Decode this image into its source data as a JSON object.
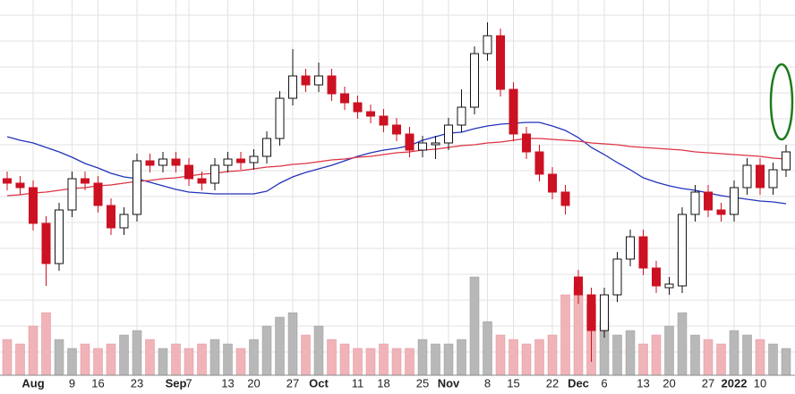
{
  "chart_data": {
    "type": "candlestick",
    "categories": [
      null,
      null,
      "Aug",
      null,
      null,
      "9",
      null,
      "16",
      null,
      null,
      "23",
      null,
      null,
      "Sep",
      "7",
      null,
      null,
      "13",
      null,
      "20",
      null,
      null,
      "27",
      null,
      "Oct",
      null,
      null,
      "11",
      null,
      "18",
      null,
      null,
      "25",
      null,
      "Nov",
      null,
      null,
      "8",
      null,
      "15",
      null,
      null,
      "22",
      null,
      "Dec",
      null,
      "6",
      null,
      null,
      "13",
      null,
      "20",
      null,
      null,
      "27",
      null,
      "2022",
      null,
      "10",
      null,
      null
    ],
    "open": [
      240,
      235,
      230,
      190,
      145,
      205,
      240,
      235,
      210,
      185,
      200,
      260,
      255,
      262,
      255,
      240,
      235,
      255,
      262,
      258,
      265,
      285,
      330,
      355,
      345,
      355,
      335,
      325,
      315,
      310,
      300,
      290,
      272,
      278,
      280,
      300,
      320,
      380,
      400,
      340,
      290,
      270,
      245,
      225,
      130,
      110,
      70,
      110,
      150,
      175,
      140,
      118,
      120,
      200,
      225,
      205,
      200,
      230,
      255,
      230,
      250
    ],
    "high": [
      248,
      243,
      238,
      198,
      213,
      248,
      248,
      243,
      218,
      208,
      268,
      268,
      270,
      270,
      263,
      248,
      263,
      270,
      270,
      273,
      293,
      338,
      385,
      363,
      370,
      363,
      343,
      333,
      323,
      318,
      308,
      298,
      288,
      288,
      308,
      340,
      388,
      415,
      408,
      348,
      298,
      278,
      253,
      233,
      138,
      118,
      118,
      158,
      183,
      183,
      148,
      130,
      208,
      233,
      233,
      213,
      238,
      263,
      263,
      258,
      278
    ],
    "low": [
      227,
      222,
      182,
      120,
      137,
      197,
      227,
      202,
      177,
      177,
      192,
      247,
      247,
      247,
      232,
      227,
      227,
      247,
      250,
      250,
      257,
      277,
      322,
      337,
      337,
      327,
      317,
      307,
      302,
      292,
      282,
      264,
      264,
      262,
      272,
      292,
      312,
      372,
      332,
      282,
      262,
      237,
      217,
      200,
      100,
      35,
      62,
      102,
      142,
      132,
      112,
      110,
      112,
      192,
      197,
      192,
      192,
      222,
      222,
      222,
      242
    ],
    "close": [
      235,
      230,
      190,
      145,
      205,
      240,
      235,
      210,
      185,
      200,
      260,
      255,
      262,
      255,
      240,
      235,
      255,
      262,
      258,
      265,
      285,
      330,
      355,
      345,
      355,
      335,
      325,
      315,
      310,
      300,
      290,
      272,
      280,
      280,
      300,
      320,
      380,
      400,
      340,
      290,
      270,
      245,
      225,
      210,
      110,
      70,
      110,
      150,
      175,
      140,
      120,
      122,
      200,
      225,
      205,
      200,
      230,
      255,
      230,
      250,
      270
    ],
    "volume": [
      40,
      35,
      55,
      70,
      40,
      30,
      35,
      30,
      35,
      45,
      50,
      40,
      30,
      35,
      30,
      35,
      40,
      35,
      30,
      40,
      55,
      65,
      70,
      45,
      55,
      40,
      35,
      30,
      30,
      35,
      30,
      30,
      40,
      35,
      35,
      40,
      110,
      60,
      45,
      40,
      35,
      40,
      45,
      90,
      100,
      80,
      60,
      45,
      50,
      35,
      45,
      55,
      70,
      45,
      40,
      35,
      50,
      45,
      40,
      35,
      30
    ],
    "moving_averages": [
      {
        "color": "#2233bb",
        "values": [
          287,
          283,
          280,
          275,
          270,
          264,
          257,
          252,
          246,
          242,
          240,
          236,
          232,
          228,
          225,
          224,
          223,
          223,
          223,
          223,
          226,
          235,
          242,
          247,
          251,
          255,
          260,
          265,
          269,
          272,
          274,
          277,
          283,
          287,
          291,
          292,
          296,
          299,
          301,
          302,
          303,
          303,
          299,
          294,
          286,
          275,
          267,
          258,
          250,
          241,
          236,
          232,
          229,
          227,
          224,
          221,
          219,
          217,
          215,
          214,
          212
        ]
      },
      {
        "color": "#dd3344",
        "values": [
          221,
          222,
          224,
          225,
          227,
          229,
          230,
          232,
          233,
          235,
          237,
          238,
          240,
          241,
          243,
          245,
          246,
          248,
          249,
          251,
          253,
          254,
          256,
          257,
          259,
          261,
          262,
          264,
          265,
          267,
          269,
          270,
          272,
          273,
          275,
          277,
          278,
          280,
          281,
          283,
          285,
          285,
          284,
          283,
          282,
          280,
          279,
          278,
          276,
          275,
          274,
          273,
          272,
          270,
          269,
          268,
          267,
          266,
          265,
          263,
          262
        ]
      }
    ],
    "up_color": "#ffffff",
    "down_color": "#cc1122",
    "volume_up_color": "#b8b8b8",
    "volume_down_color": "#f0b4b8",
    "ylim": [
      0,
      440
    ],
    "vlim": [
      0,
      120
    ]
  }
}
